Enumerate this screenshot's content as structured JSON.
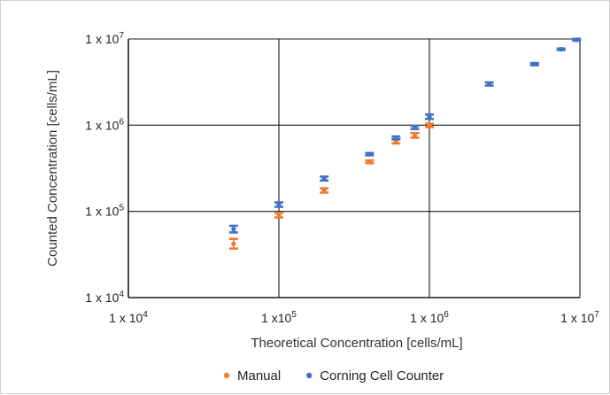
{
  "chart_data": {
    "type": "scatter",
    "xscale": "log",
    "yscale": "log",
    "xlim": [
      10000,
      10000000
    ],
    "ylim": [
      10000,
      10000000
    ],
    "grid": true,
    "legend_position": "bottom",
    "xlabel": "Theoretical Concentration  [cells/mL]",
    "ylabel": "Counted Concentration  [cells/mL]",
    "xticks": [
      {
        "value": 10000,
        "mantissa": "1 x 10",
        "exp": "4"
      },
      {
        "value": 100000,
        "mantissa": "1 x10",
        "exp": "5"
      },
      {
        "value": 1000000,
        "mantissa": "1 x 10",
        "exp": "6"
      },
      {
        "value": 10000000,
        "mantissa": "1 x 10",
        "exp": "7"
      }
    ],
    "yticks": [
      {
        "value": 10000,
        "mantissa": "1 x 10",
        "exp": "4"
      },
      {
        "value": 100000,
        "mantissa": "1 x 10",
        "exp": "5"
      },
      {
        "value": 1000000,
        "mantissa": "1 x 10",
        "exp": "6"
      },
      {
        "value": 10000000,
        "mantissa": "1 x 10",
        "exp": "7"
      }
    ],
    "series": [
      {
        "name": "Manual",
        "color": "#ED7D31",
        "points": [
          {
            "x": 50000,
            "y": 42000,
            "lo": 37000,
            "hi": 48000
          },
          {
            "x": 100000,
            "y": 90000,
            "lo": 85000,
            "hi": 96000
          },
          {
            "x": 200000,
            "y": 175000,
            "lo": 165000,
            "hi": 185000
          },
          {
            "x": 400000,
            "y": 375000,
            "lo": 362000,
            "hi": 390000
          },
          {
            "x": 600000,
            "y": 650000,
            "lo": 615000,
            "hi": 690000
          },
          {
            "x": 800000,
            "y": 760000,
            "lo": 715000,
            "hi": 810000
          },
          {
            "x": 1000000,
            "y": 990000,
            "lo": 950000,
            "hi": 1040000
          }
        ]
      },
      {
        "name": "Corning Cell Counter",
        "color": "#4472C4",
        "points": [
          {
            "x": 50000,
            "y": 62000,
            "lo": 57000,
            "hi": 68000
          },
          {
            "x": 100000,
            "y": 120000,
            "lo": 113000,
            "hi": 127000
          },
          {
            "x": 200000,
            "y": 240000,
            "lo": 228000,
            "hi": 253000
          },
          {
            "x": 400000,
            "y": 460000,
            "lo": 447000,
            "hi": 475000
          },
          {
            "x": 600000,
            "y": 710000,
            "lo": 685000,
            "hi": 740000
          },
          {
            "x": 800000,
            "y": 940000,
            "lo": 900000,
            "hi": 980000
          },
          {
            "x": 1000000,
            "y": 1250000,
            "lo": 1180000,
            "hi": 1330000
          },
          {
            "x": 2500000,
            "y": 3000000,
            "lo": 2880000,
            "hi": 3130000
          },
          {
            "x": 5000000,
            "y": 5100000,
            "lo": 4950000,
            "hi": 5260000
          },
          {
            "x": 7500000,
            "y": 7600000,
            "lo": 7450000,
            "hi": 7760000
          },
          {
            "x": 9500000,
            "y": 9800000,
            "lo": 9550000,
            "hi": 10050000
          }
        ]
      }
    ]
  }
}
